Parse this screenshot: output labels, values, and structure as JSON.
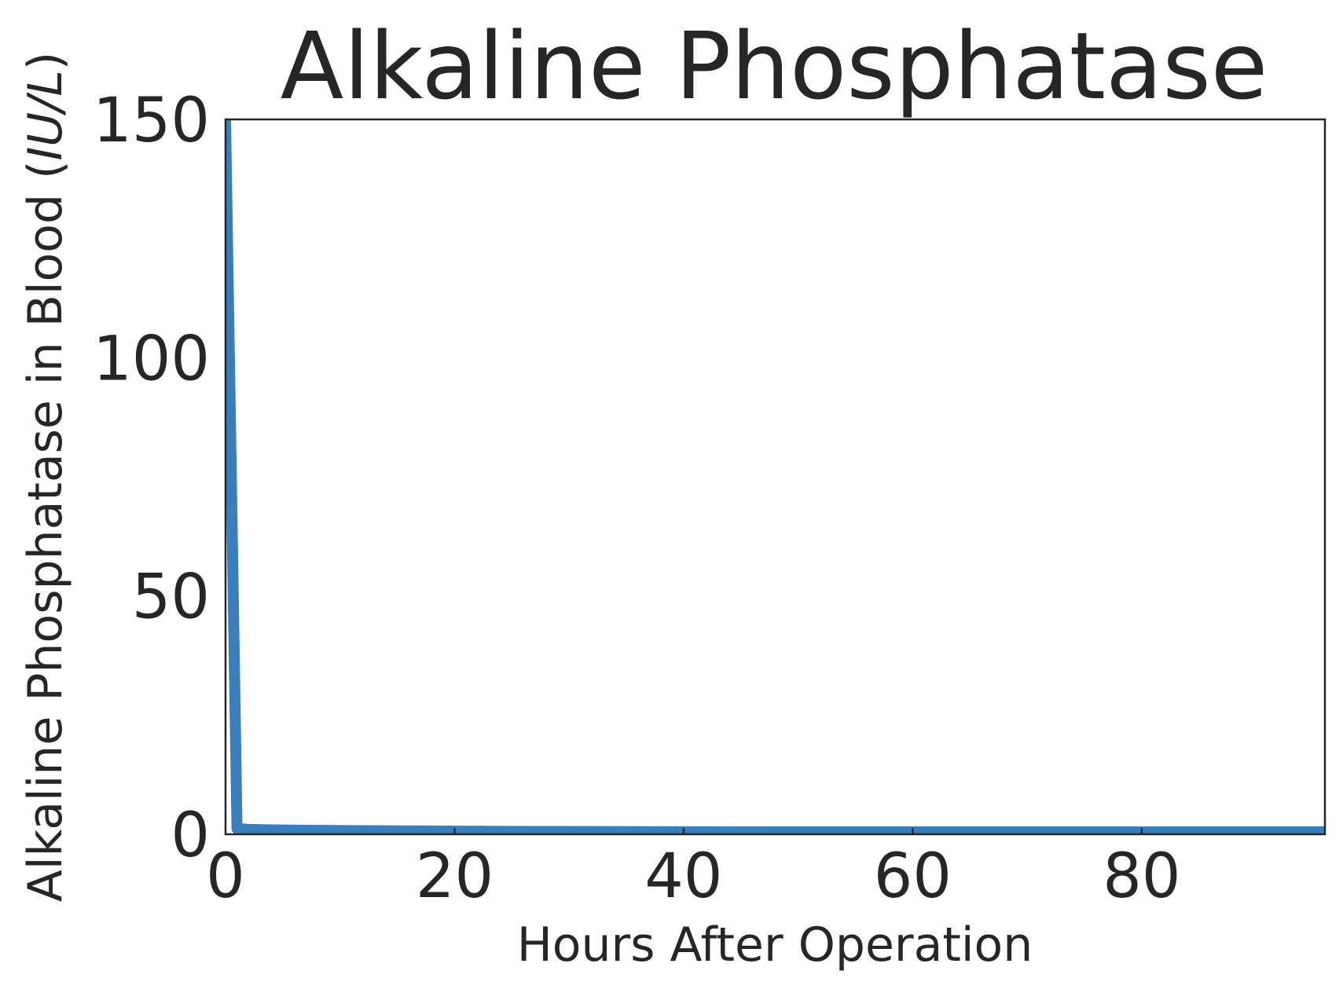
{
  "chart_data": {
    "type": "line",
    "title": "Alkaline Phosphatase",
    "xlabel": "Hours After Operation",
    "ylabel_main": "Alkaline Phosphatase in Blood (",
    "ylabel_unit": "IU/L",
    "ylabel_close": ")",
    "xlim": [
      0,
      96
    ],
    "ylim": [
      0,
      150
    ],
    "x_ticks": [
      0,
      20,
      40,
      60,
      80
    ],
    "y_ticks": [
      0,
      50,
      100,
      150
    ],
    "x_tick_labels": [
      "0",
      "20",
      "40",
      "60",
      "80"
    ],
    "y_tick_labels": [
      "0",
      "50",
      "100",
      "150"
    ],
    "grid": false,
    "series": [
      {
        "color": "#3a7ebb",
        "x": [
          0,
          1,
          2,
          4,
          8,
          16,
          24,
          48,
          72,
          96
        ],
        "y": [
          150,
          1.2,
          1.0,
          0.9,
          0.8,
          0.7,
          0.6,
          0.5,
          0.5,
          0.5
        ]
      }
    ]
  }
}
